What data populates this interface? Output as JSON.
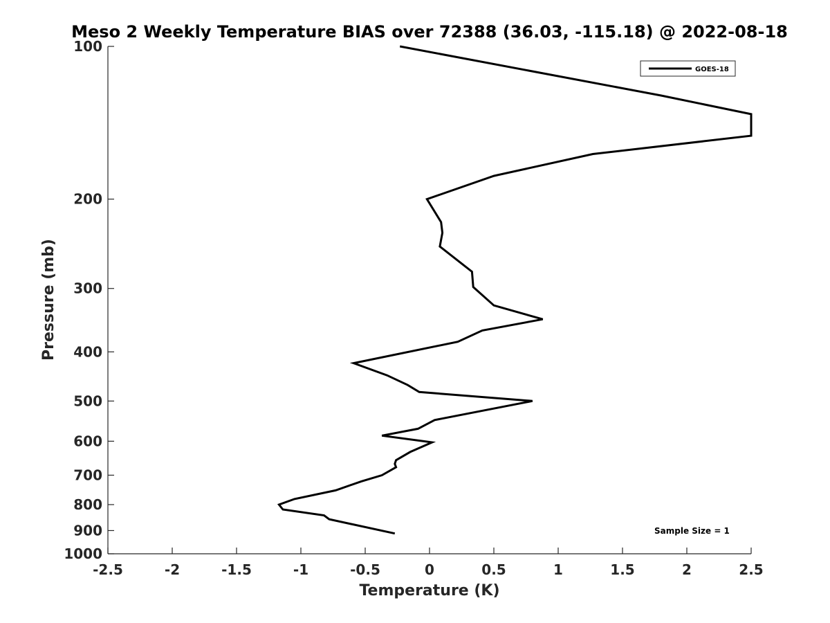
{
  "chart_data": {
    "type": "line",
    "title": "Meso 2 Weekly Temperature BIAS over 72388 (36.03, -115.18) @ 2022-08-18",
    "xlabel": "Temperature (K)",
    "ylabel": "Pressure (mb)",
    "xlim": [
      -2.5,
      2.5
    ],
    "ylim": [
      100,
      1000
    ],
    "y_scale": "log",
    "y_reversed": true,
    "grid": false,
    "legend_position": "top-right",
    "x_ticks": [
      -2.5,
      -2,
      -1.5,
      -1,
      -0.5,
      0,
      0.5,
      1,
      1.5,
      2,
      2.5
    ],
    "x_tick_labels": [
      "-2.5",
      "-2",
      "-1.5",
      "-1",
      "-0.5",
      "0",
      "0.5",
      "1",
      "1.5",
      "2",
      "2.5"
    ],
    "y_ticks": [
      100,
      200,
      300,
      400,
      500,
      600,
      700,
      800,
      900,
      1000
    ],
    "y_tick_labels": [
      "100",
      "200",
      "300",
      "400",
      "500",
      "600",
      "700",
      "800",
      "900",
      "1000"
    ],
    "series": [
      {
        "name": "GOES-18",
        "color": "#000000",
        "points": [
          [
            -0.23,
            100
          ],
          [
            1.8,
            125
          ],
          [
            2.5,
            136
          ],
          [
            2.5,
            150
          ],
          [
            1.27,
            163
          ],
          [
            0.5,
            180
          ],
          [
            -0.02,
            200
          ],
          [
            0.09,
            222
          ],
          [
            0.1,
            233
          ],
          [
            0.08,
            248
          ],
          [
            0.33,
            278
          ],
          [
            0.34,
            298
          ],
          [
            0.5,
            324
          ],
          [
            0.88,
            345
          ],
          [
            0.41,
            363
          ],
          [
            0.22,
            382
          ],
          [
            -0.59,
            421
          ],
          [
            -0.33,
            445
          ],
          [
            -0.17,
            465
          ],
          [
            -0.08,
            480
          ],
          [
            0.8,
            500
          ],
          [
            0.04,
            545
          ],
          [
            -0.09,
            567
          ],
          [
            -0.37,
            585
          ],
          [
            0.02,
            603
          ],
          [
            -0.15,
            630
          ],
          [
            -0.26,
            654
          ],
          [
            -0.27,
            665
          ],
          [
            -0.26,
            675
          ],
          [
            -0.37,
            700
          ],
          [
            -0.53,
            720
          ],
          [
            -0.73,
            750
          ],
          [
            -1.05,
            780
          ],
          [
            -1.17,
            800
          ],
          [
            -1.14,
            818
          ],
          [
            -0.82,
            840
          ],
          [
            -0.78,
            855
          ],
          [
            -0.27,
            912
          ]
        ]
      }
    ],
    "annotations": [
      "Sample Size = 1"
    ]
  }
}
